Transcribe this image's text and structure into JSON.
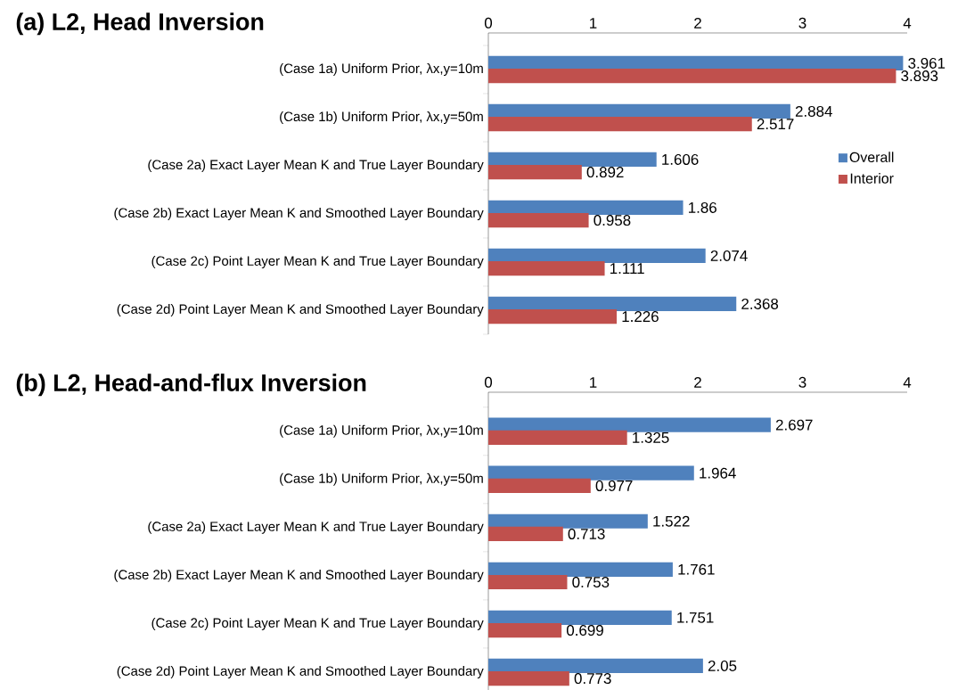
{
  "chart_data": [
    {
      "type": "bar",
      "orientation": "horizontal",
      "title": "(a) L2, Head Inversion",
      "categories": [
        "(Case 1a) Uniform Prior, λx,y=10m",
        "(Case 1b) Uniform Prior, λx,y=50m",
        "(Case 2a) Exact Layer Mean K and True Layer Boundary",
        "(Case 2b) Exact Layer Mean K and Smoothed Layer Boundary",
        "(Case 2c) Point Layer Mean K and True Layer Boundary",
        "(Case 2d) Point Layer Mean K and Smoothed Layer Boundary"
      ],
      "series": [
        {
          "name": "Overall",
          "color": "#4f81bd",
          "values": [
            3.961,
            2.884,
            1.606,
            1.86,
            2.074,
            2.368
          ]
        },
        {
          "name": "Interior",
          "color": "#c0504d",
          "values": [
            3.893,
            2.517,
            0.892,
            0.958,
            1.111,
            1.226
          ]
        }
      ],
      "xlim": [
        0,
        4
      ],
      "xticks": [
        0,
        1,
        2,
        3,
        4
      ],
      "data_labels": true,
      "grid": false,
      "legend": "right"
    },
    {
      "type": "bar",
      "orientation": "horizontal",
      "title": "(b) L2, Head-and-flux Inversion",
      "categories": [
        "(Case 1a) Uniform Prior, λx,y=10m",
        "(Case 1b) Uniform Prior, λx,y=50m",
        "(Case 2a) Exact Layer Mean K and True Layer Boundary",
        "(Case 2b) Exact Layer Mean K and Smoothed Layer Boundary",
        "(Case 2c) Point Layer Mean K and True Layer Boundary",
        "(Case 2d) Point Layer Mean K and Smoothed Layer Boundary"
      ],
      "series": [
        {
          "color": "#4f81bd",
          "values": [
            2.697,
            1.964,
            1.522,
            1.761,
            1.751,
            2.05
          ]
        },
        {
          "color": "#c0504d",
          "values": [
            1.325,
            0.977,
            0.713,
            0.753,
            0.699,
            0.773
          ]
        }
      ],
      "xlim": [
        0,
        4
      ],
      "xticks": [
        0,
        1,
        2,
        3,
        4
      ],
      "data_labels": true,
      "grid": false
    }
  ]
}
